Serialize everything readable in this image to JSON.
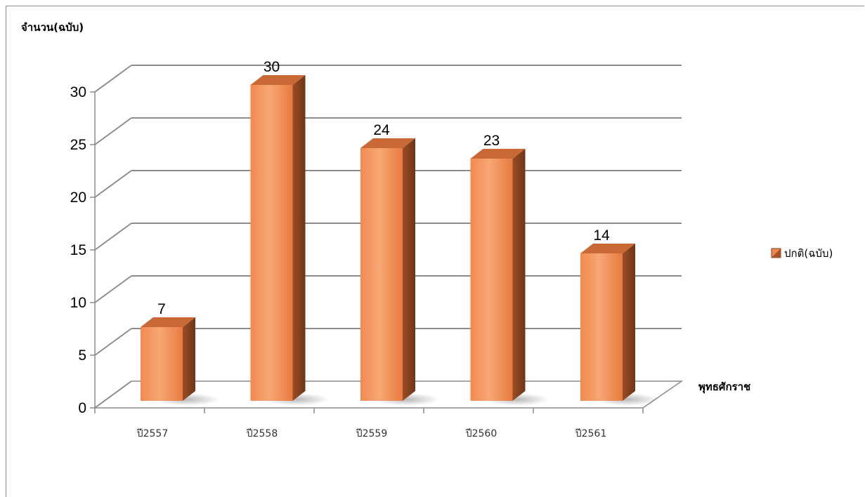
{
  "chart_data": {
    "type": "bar",
    "style": "3d-column",
    "categories": [
      "ปี2557",
      "ปี2558",
      "ปี2559",
      "ปี2560",
      "ปี2561"
    ],
    "series": [
      {
        "name": "ปกติ(ฉบับ)",
        "values": [
          7,
          30,
          24,
          23,
          14
        ]
      }
    ],
    "data_labels": [
      "7",
      "30",
      "24",
      "23",
      "14"
    ],
    "ylabel": "จำนวน(ฉบับ)",
    "xlabel": "พุทธศักราช",
    "ylim": [
      0,
      30
    ],
    "yticks": [
      0,
      5,
      10,
      15,
      20,
      25,
      30
    ],
    "ytick_labels": [
      "0",
      "5",
      "10",
      "15",
      "20",
      "25",
      "30"
    ],
    "grid": true,
    "legend": "right",
    "colors": {
      "bar_front": "#f0864e",
      "bar_front_light": "#f8a874",
      "bar_side": "#8a4420",
      "bar_top": "#c96a36",
      "grid": "#8c8c8c"
    }
  }
}
